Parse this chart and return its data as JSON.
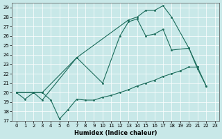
{
  "xlabel": "Humidex (Indice chaleur)",
  "background_color": "#c8e8e8",
  "line_color": "#1a6b5a",
  "xlim": [
    -0.5,
    23.5
  ],
  "ylim": [
    17,
    29.5
  ],
  "xticks": [
    0,
    1,
    2,
    3,
    4,
    5,
    6,
    7,
    8,
    9,
    10,
    11,
    12,
    13,
    14,
    15,
    16,
    17,
    18,
    19,
    20,
    21,
    22,
    23
  ],
  "yticks": [
    17,
    18,
    19,
    20,
    21,
    22,
    23,
    24,
    25,
    26,
    27,
    28,
    29
  ],
  "line1_x": [
    0,
    1,
    2,
    3,
    4,
    5,
    6,
    7,
    8,
    9,
    10,
    11,
    12,
    13,
    14,
    15,
    16,
    17,
    18,
    19,
    20,
    21
  ],
  "line1_y": [
    20,
    19.3,
    20,
    20,
    19.2,
    17.2,
    18.2,
    19.3,
    19.2,
    19.2,
    19.5,
    19.7,
    20.0,
    20.3,
    20.7,
    21.0,
    21.3,
    21.7,
    22.0,
    22.3,
    22.7,
    22.7
  ],
  "line2_x": [
    0,
    2,
    3,
    7,
    10,
    12,
    13,
    14,
    15,
    16,
    17,
    18,
    20,
    21,
    22
  ],
  "line2_y": [
    20,
    20,
    20,
    23.7,
    21.0,
    26.0,
    27.5,
    27.8,
    26.0,
    26.2,
    26.7,
    24.5,
    24.7,
    22.7,
    20.7
  ],
  "line3_x": [
    0,
    2,
    3,
    7,
    13,
    14,
    15,
    16,
    17,
    18,
    20,
    21,
    22
  ],
  "line3_y": [
    20,
    20,
    19.2,
    23.7,
    27.7,
    28.0,
    28.7,
    28.7,
    29.2,
    28.0,
    24.7,
    22.5,
    20.7
  ]
}
